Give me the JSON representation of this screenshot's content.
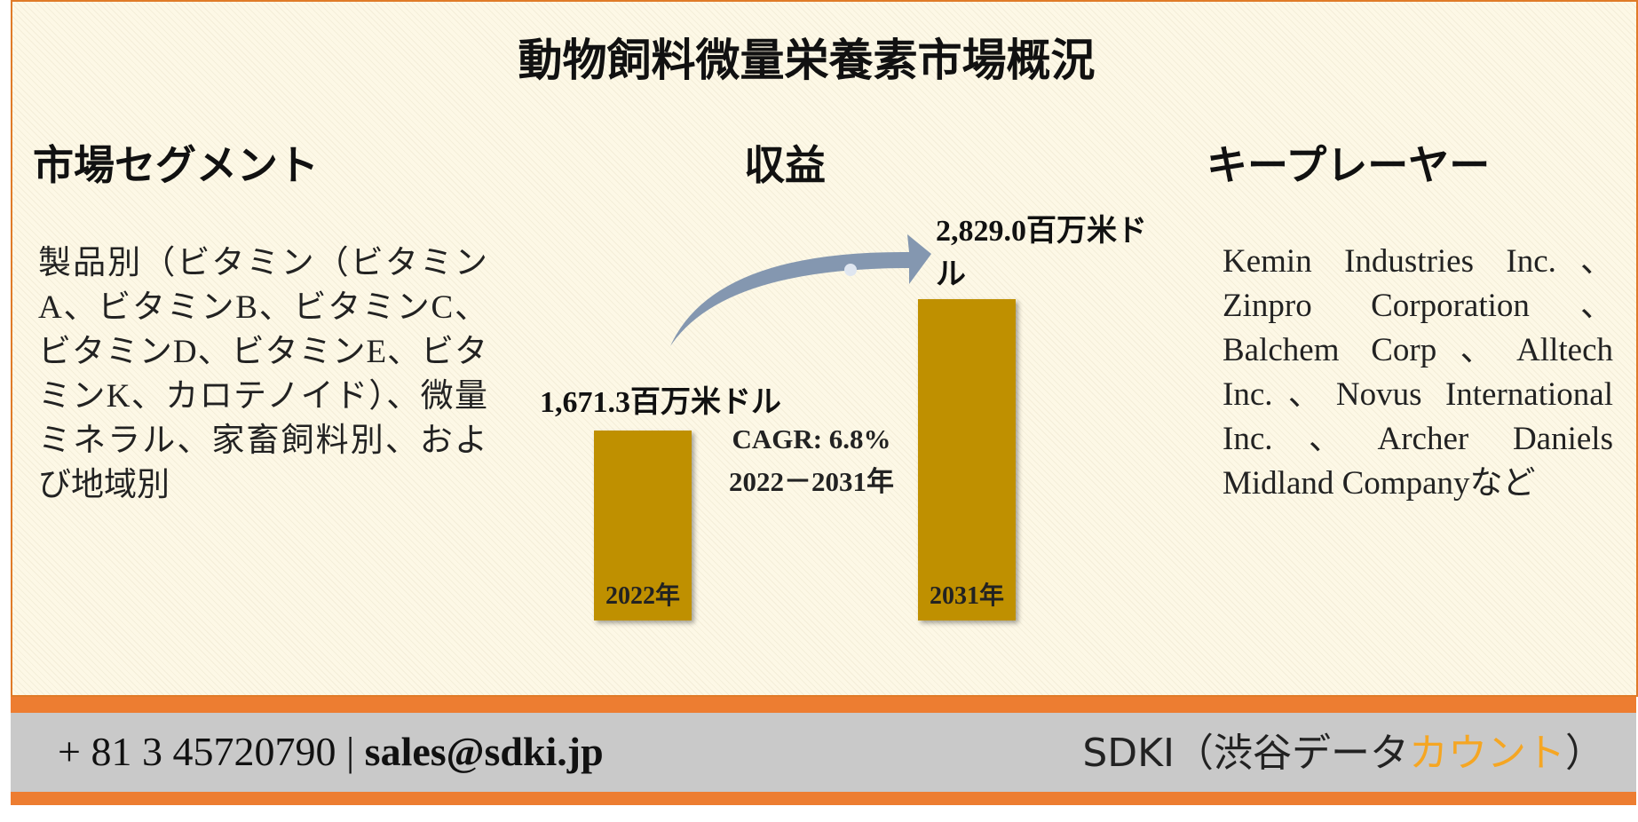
{
  "title": "動物飼料微量栄養素市場概況",
  "segments": {
    "heading": "市場セグメント",
    "text": "製品別（ビタミン（ビタミンA、ビタミンB、ビタミンC、ビタミンD、ビタミンE、ビタミンK、カロテノイド）、微量ミネラル、家畜飼料別、および地域別"
  },
  "chart_data": {
    "type": "bar",
    "title": "収益",
    "categories": [
      "2022年",
      "2031年"
    ],
    "values": [
      1671.3,
      2829.0
    ],
    "value_labels": [
      "1,671.3百万米ドル",
      "2,829.0百万米ドル"
    ],
    "color": "#bf9000",
    "cagr": "CAGR: 6.8%",
    "cagr_period": "2022－2031年"
  },
  "players": {
    "heading": "キープレーヤー",
    "text": "Kemin Industries Inc.、Zinpro Corporation、Balchem Corp、Alltech Inc.、Novus International Inc.、Archer Daniels Midland Companyなど"
  },
  "footer": {
    "phone": "+ 81 3 45720790",
    "separator": "|",
    "email": "sales@sdki.jp",
    "brand": "SDKI（渋谷データ",
    "brand_accent": "カウント",
    "brand_end": "）"
  }
}
